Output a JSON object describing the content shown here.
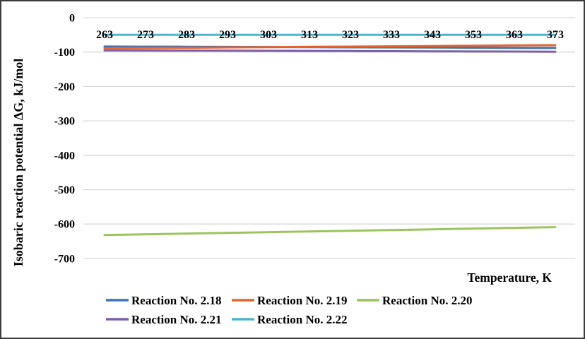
{
  "colors": {
    "background": "#FFFFFF",
    "frame": "#3C3C3C",
    "grid": "#D9D9D9",
    "text": "#000000"
  },
  "chart_data": {
    "type": "line",
    "title": "",
    "xlabel": "Temperature, K",
    "ylabel": "Isobaric reaction potential ΔG, kJ/mol",
    "grid": "horizontal",
    "legend_position": "bottom",
    "x": [
      263,
      273,
      283,
      293,
      303,
      313,
      323,
      333,
      343,
      353,
      363,
      373
    ],
    "x_tick_labels": [
      "263",
      "273",
      "283",
      "293",
      "303",
      "313",
      "323",
      "333",
      "343",
      "353",
      "363",
      "373"
    ],
    "y_axis": {
      "ticks": [
        0,
        -100,
        -200,
        -300,
        -400,
        -500,
        -600,
        -700
      ],
      "labels": [
        "0",
        "-100",
        "-200",
        "-300",
        "-400",
        "-500",
        "-600",
        "-700"
      ],
      "range": [
        -750,
        0
      ]
    },
    "series": [
      {
        "name": "Reaction No. 2.18",
        "color": "#3D71B8",
        "values": [
          -84.0,
          -84.4,
          -84.7,
          -85.1,
          -85.5,
          -85.8,
          -86.2,
          -86.5,
          -86.9,
          -87.3,
          -87.6,
          -88.0
        ]
      },
      {
        "name": "Reaction No. 2.19",
        "color": "#E8632C",
        "values": [
          -89.0,
          -88.2,
          -87.4,
          -86.5,
          -85.7,
          -84.9,
          -84.1,
          -83.3,
          -82.5,
          -81.6,
          -80.8,
          -80.0
        ]
      },
      {
        "name": "Reaction No. 2.20",
        "color": "#9CC35E",
        "values": [
          -632.0,
          -629.9,
          -627.8,
          -625.7,
          -623.6,
          -621.5,
          -619.5,
          -617.4,
          -615.3,
          -613.2,
          -611.1,
          -609.0
        ]
      },
      {
        "name": "Reaction No. 2.21",
        "color": "#7C5FA8",
        "values": [
          -95.0,
          -95.4,
          -95.7,
          -96.1,
          -96.5,
          -96.8,
          -97.2,
          -97.5,
          -97.9,
          -98.3,
          -98.6,
          -99.0
        ]
      },
      {
        "name": "Reaction No. 2.22",
        "color": "#4BB5CE",
        "values": [
          -50,
          -50,
          -50,
          -50,
          -50,
          -50,
          -50,
          -50,
          -50,
          -50,
          -50,
          -50
        ]
      }
    ]
  }
}
